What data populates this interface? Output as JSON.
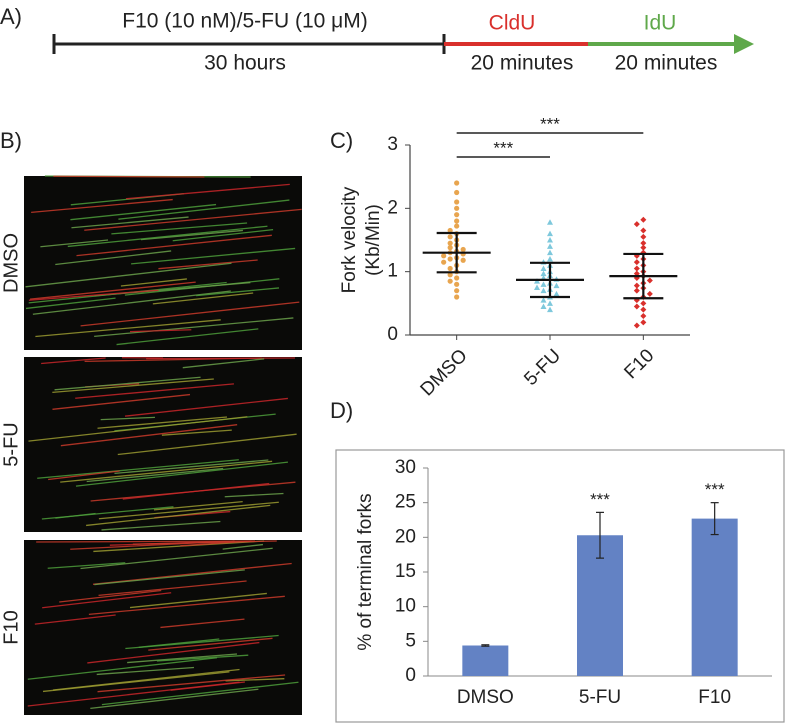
{
  "panel_labels": [
    "A)",
    "B)",
    "C)",
    "D)"
  ],
  "timeline": {
    "treatment": "F10 (10 nM)/5-FU (10 μM)",
    "treatment_duration": "30 hours",
    "label1": "CldU",
    "label1_duration": "20 minutes",
    "label2": "IdU",
    "label2_duration": "20 minutes"
  },
  "images": {
    "labels": [
      "DMSO",
      "5-FU",
      "F10"
    ]
  },
  "chart_data": [
    {
      "type": "dotplot",
      "ylabel": [
        "Fork velocity",
        "(Kb/Min)"
      ],
      "categories": [
        "DMSO",
        "5-FU",
        "F10"
      ],
      "colors": [
        "#e8a54f",
        "#7ec8dc",
        "#d9302c"
      ],
      "markers": [
        "circle",
        "triangle",
        "diamond"
      ],
      "points": [
        [
          2.4,
          2.25,
          2.1,
          2.0,
          1.9,
          1.8,
          1.72,
          1.65,
          1.6,
          1.55,
          1.5,
          1.45,
          1.42,
          1.38,
          1.35,
          1.32,
          1.3,
          1.28,
          1.25,
          1.22,
          1.2,
          1.18,
          1.15,
          1.1,
          1.05,
          1.0,
          0.95,
          0.9,
          0.85,
          0.8,
          0.7,
          0.6
        ],
        [
          1.78,
          1.6,
          1.5,
          1.4,
          1.3,
          1.2,
          1.15,
          1.1,
          1.05,
          1.0,
          0.97,
          0.94,
          0.9,
          0.88,
          0.85,
          0.82,
          0.8,
          0.78,
          0.75,
          0.72,
          0.7,
          0.65,
          0.6,
          0.55,
          0.5,
          0.45,
          0.4
        ],
        [
          1.82,
          1.75,
          1.65,
          1.55,
          1.45,
          1.38,
          1.3,
          1.25,
          1.2,
          1.15,
          1.1,
          1.05,
          1.0,
          0.97,
          0.93,
          0.9,
          0.86,
          0.82,
          0.78,
          0.74,
          0.7,
          0.65,
          0.6,
          0.55,
          0.5,
          0.45,
          0.4,
          0.3,
          0.2,
          0.15
        ]
      ],
      "means": [
        1.3,
        0.87,
        0.93
      ],
      "sds": [
        0.31,
        0.27,
        0.35
      ],
      "annotations": [
        "***",
        "***"
      ],
      "ylim": [
        0,
        3
      ],
      "yticks": [
        0,
        1,
        2,
        3
      ]
    },
    {
      "type": "bar",
      "ylabel": "% of terminal forks",
      "categories": [
        "DMSO",
        "5-FU",
        "F10"
      ],
      "values": [
        4.4,
        20.3,
        22.7
      ],
      "errors": [
        0.1,
        3.3,
        2.3
      ],
      "annotations": [
        null,
        "***",
        "***"
      ],
      "color": "#6382c4",
      "ylim": [
        0,
        30
      ],
      "yticks": [
        0,
        5,
        10,
        15,
        20,
        25,
        30
      ]
    }
  ]
}
